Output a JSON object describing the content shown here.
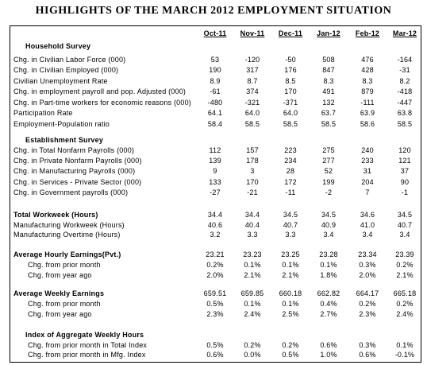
{
  "title": "HIGHLIGHTS OF THE MARCH 2012 EMPLOYMENT SITUATION",
  "columns": [
    "Oct-11",
    "Nov-11",
    "Dec-11",
    "Jan-12",
    "Feb-12",
    "Mar-12"
  ],
  "sections": [
    {
      "heading": "Household Survey",
      "rows": [
        {
          "label": "Chg. in Civilian Labor Force (000)",
          "values": [
            "53",
            "-120",
            "-50",
            "508",
            "476",
            "-164"
          ]
        },
        {
          "label": "Chg. in Civilian Employed (000)",
          "values": [
            "190",
            "317",
            "176",
            "847",
            "428",
            "-31"
          ]
        },
        {
          "label": "Civilian Unemployment Rate",
          "values": [
            "8.9",
            "8.7",
            "8.5",
            "8.3",
            "8.3",
            "8.2"
          ]
        },
        {
          "label": "Chg. in employment payroll and pop. Adjusted (000)",
          "values": [
            "-61",
            "374",
            "170",
            "491",
            "879",
            "-418"
          ]
        },
        {
          "label": "Chg. in Part-time workers for economic reasons (000)",
          "values": [
            "-480",
            "-321",
            "-371",
            "132",
            "-111",
            "-447"
          ]
        },
        {
          "label": "Participation Rate",
          "values": [
            "64.1",
            "64.0",
            "64.0",
            "63.7",
            "63.9",
            "63.8"
          ]
        },
        {
          "label": "Employment-Population ratio",
          "values": [
            "58.4",
            "58.5",
            "58.5",
            "58.5",
            "58.6",
            "58.5"
          ]
        }
      ]
    },
    {
      "heading": "Establishment Survey",
      "rows": [
        {
          "label": "Chg. in Total Nonfarm Payrolls (000)",
          "values": [
            "112",
            "157",
            "223",
            "275",
            "240",
            "120"
          ]
        },
        {
          "label": "Chg. in Private Nonfarm Payrolls (000)",
          "values": [
            "139",
            "178",
            "234",
            "277",
            "233",
            "121"
          ]
        },
        {
          "label": "Chg. in Manufacturing Payrolls (000)",
          "values": [
            "9",
            "3",
            "28",
            "52",
            "31",
            "37"
          ]
        },
        {
          "label": "Chg. in Services - Private Sector (000)",
          "values": [
            "133",
            "170",
            "172",
            "199",
            "204",
            "90"
          ]
        },
        {
          "label": "Chg. in Government payrolls (000)",
          "values": [
            "-27",
            "-21",
            "-11",
            "-2",
            "7",
            "-1"
          ]
        }
      ]
    },
    {
      "lead": {
        "label": "Total Workweek (Hours)",
        "values": [
          "34.4",
          "34.4",
          "34.5",
          "34.5",
          "34.6",
          "34.5"
        ]
      },
      "rows": [
        {
          "label": "Manufacturing Workweek (Hours)",
          "values": [
            "40.6",
            "40.4",
            "40.7",
            "40.9",
            "41.0",
            "40.7"
          ]
        },
        {
          "label": "Manufacturing Overtime (Hours)",
          "values": [
            "3.2",
            "3.3",
            "3.3",
            "3.4",
            "3.4",
            "3.4"
          ]
        }
      ]
    },
    {
      "lead": {
        "label": "Average Hourly Earnings(Pvt.)",
        "values": [
          "23.21",
          "23.23",
          "23.25",
          "23.28",
          "23.34",
          "23.39"
        ]
      },
      "rows": [
        {
          "label": "Chg. from prior month",
          "values": [
            "0.2%",
            "0.1%",
            "0.1%",
            "0.1%",
            "0.3%",
            "0.2%"
          ]
        },
        {
          "label": "Chg. from year ago",
          "values": [
            "2.0%",
            "2.1%",
            "2.1%",
            "1.8%",
            "2.0%",
            "2.1%"
          ]
        }
      ]
    },
    {
      "lead": {
        "label": "Average Weekly Earnings",
        "values": [
          "659.51",
          "659.85",
          "660.18",
          "662.82",
          "664.17",
          "665.18"
        ]
      },
      "rows": [
        {
          "label": "Chg. from prior month",
          "values": [
            "0.5%",
            "0.1%",
            "0.1%",
            "0.4%",
            "0.2%",
            "0.2%"
          ]
        },
        {
          "label": "Chg. from year ago",
          "values": [
            "2.3%",
            "2.4%",
            "2.5%",
            "2.7%",
            "2.3%",
            "2.4%"
          ]
        }
      ]
    },
    {
      "heading": "Index of Aggregate Weekly Hours",
      "rows": [
        {
          "label": "Chg. from prior month in Total Index",
          "values": [
            "0.5%",
            "0.2%",
            "0.2%",
            "0.6%",
            "0.3%",
            "0.1%"
          ]
        },
        {
          "label": "Chg. from prior month in Mfg. Index",
          "values": [
            "0.6%",
            "0.0%",
            "0.5%",
            "1.0%",
            "0.6%",
            "-0.1%"
          ]
        }
      ]
    }
  ]
}
